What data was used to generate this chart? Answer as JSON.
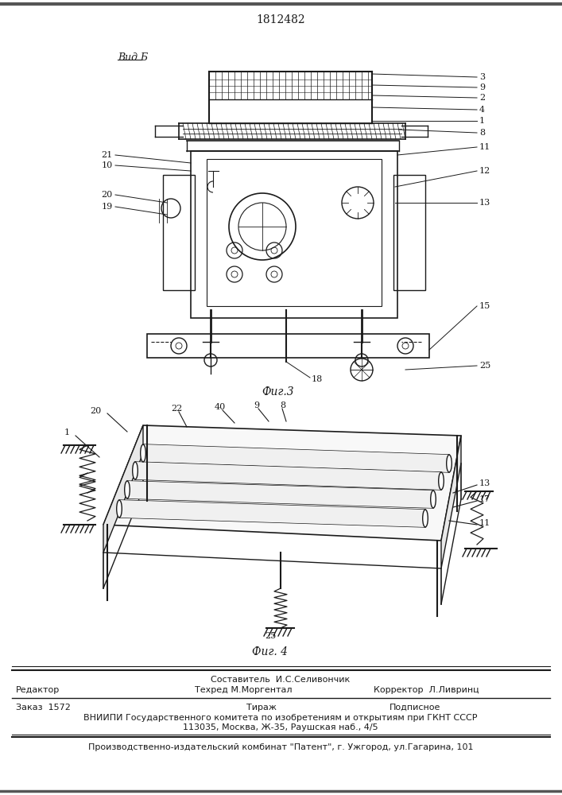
{
  "patent_number": "1812482",
  "vid_label": "Вид Б",
  "fig3_label": "Фиг.3",
  "fig4_label": "Фиг. 4",
  "footer_sestavitel": "Составитель  И.С.Селивончик",
  "footer_redaktor": "Редактор",
  "footer_tehred": "Техред М.Моргентал",
  "footer_korrektor": "Корректор  Л.Ливринц",
  "footer_zakaz": "Заказ  1572",
  "footer_tirazh": "Тираж",
  "footer_podpisnoe": "Подписное",
  "footer_vniipи": "ВНИИПИ Государственного комитета по изобретениям и открытиям при ГКНТ СССР",
  "footer_addr": "113035, Москва, Ж-35, Раушская наб., 4/5",
  "footer_kombat": "Производственно-издательский комбинат \"Патент\", г. Ужгород, ул.Гагарина, 101",
  "bg_color": "#ffffff",
  "dc": "#1a1a1a"
}
